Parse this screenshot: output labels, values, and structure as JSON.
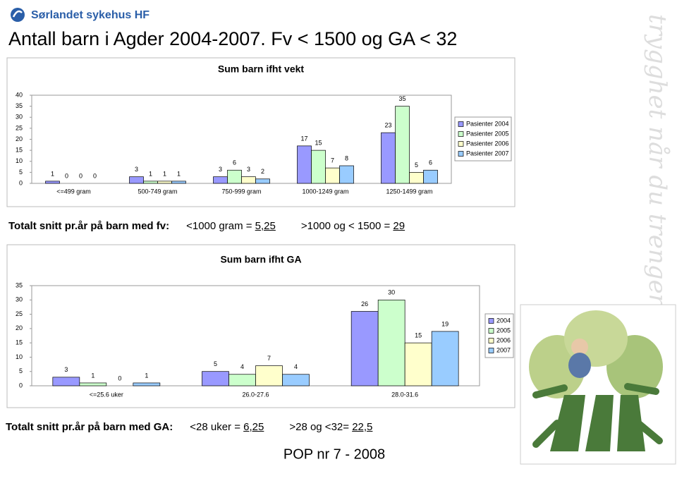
{
  "header": {
    "logo": "Sørlandet sykehus HF",
    "title": "Antall barn i Agder 2004-2007. Fv < 1500 og GA < 32"
  },
  "chart_data": [
    {
      "type": "bar",
      "title": "Sum barn ifht vekt",
      "categories": [
        "<=499 gram",
        "500-749 gram",
        "750-999 gram",
        "1000-1249 gram",
        "1250-1499 gram"
      ],
      "series": [
        {
          "name": "Pasienter 2004",
          "color": "#9999ff",
          "values": [
            1,
            3,
            3,
            17,
            23
          ]
        },
        {
          "name": "Pasienter 2005",
          "color": "#ccffcc",
          "values": [
            0,
            1,
            6,
            15,
            35
          ]
        },
        {
          "name": "Pasienter 2006",
          "color": "#ffffcc",
          "values": [
            0,
            1,
            3,
            7,
            5
          ]
        },
        {
          "name": "Pasienter 2007",
          "color": "#99ccff",
          "values": [
            0,
            1,
            2,
            8,
            6
          ]
        }
      ],
      "ylim": [
        0,
        40
      ],
      "yticks": [
        0,
        5,
        10,
        15,
        20,
        25,
        30,
        35,
        40
      ],
      "grid": false,
      "legend": "right"
    },
    {
      "type": "bar",
      "title": "Sum barn ifht GA",
      "categories": [
        "<=25.6 uker",
        "26.0-27.6",
        "28.0-31.6"
      ],
      "series": [
        {
          "name": "2004",
          "color": "#9999ff",
          "values": [
            3,
            5,
            26
          ]
        },
        {
          "name": "2005",
          "color": "#ccffcc",
          "values": [
            1,
            4,
            30
          ]
        },
        {
          "name": "2006",
          "color": "#ffffcc",
          "values": [
            0,
            7,
            15
          ]
        },
        {
          "name": "2007",
          "color": "#99ccff",
          "values": [
            1,
            4,
            19
          ]
        }
      ],
      "ylim": [
        0,
        35
      ],
      "yticks": [
        0,
        5,
        10,
        15,
        20,
        25,
        30,
        35
      ],
      "grid": false,
      "legend": "right"
    }
  ],
  "summary": [
    {
      "label": "Totalt snitt pr.år på barn med fv:",
      "parts": [
        {
          "prefix": "<1000 gram = ",
          "value": "5,25"
        },
        {
          "prefix": ">1000 og < 1500 = ",
          "value": "29"
        }
      ]
    },
    {
      "label": "Totalt snitt pr.år på barn med GA:",
      "parts": [
        {
          "prefix": "<28 uker = ",
          "value": "6,25"
        },
        {
          "prefix": ">28 og <32= ",
          "value": "22,5"
        }
      ]
    }
  ],
  "footer": "POP nr 7 - 2008",
  "side_text": "trygghet når du trenger det mest"
}
